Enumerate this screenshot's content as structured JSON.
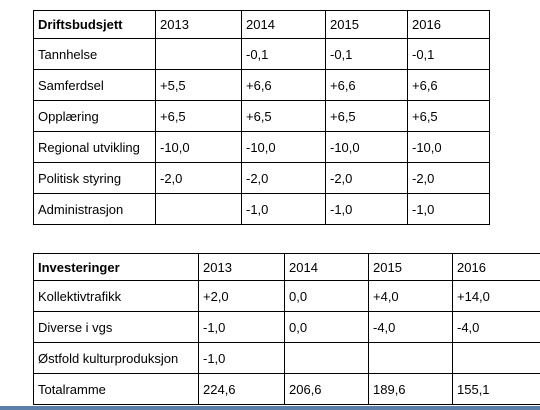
{
  "drift": {
    "headers": [
      "Driftsbudsjett",
      "2013",
      "2014",
      "2015",
      "2016"
    ],
    "rows": [
      [
        "Tannhelse",
        "",
        "-0,1",
        "-0,1",
        "-0,1"
      ],
      [
        "Samferdsel",
        "+5,5",
        "+6,6",
        "+6,6",
        "+6,6"
      ],
      [
        "Opplæring",
        "+6,5",
        "+6,5",
        "+6,5",
        "+6,5"
      ],
      [
        "Regional utvikling",
        "-10,0",
        "-10,0",
        "-10,0",
        "-10,0"
      ],
      [
        "Politisk styring",
        "-2,0",
        "-2,0",
        "-2,0",
        "-2,0"
      ],
      [
        "Administrasjon",
        "",
        "-1,0",
        "-1,0",
        "-1,0"
      ]
    ]
  },
  "invest": {
    "headers": [
      "Investeringer",
      "2013",
      "2014",
      "2015",
      "2016"
    ],
    "rows": [
      [
        "Kollektivtrafikk",
        "+2,0",
        "0,0",
        "+4,0",
        "+14,0"
      ],
      [
        "Diverse i vgs",
        "-1,0",
        "0,0",
        "-4,0",
        "-4,0"
      ],
      [
        "Østfold kulturproduksjon",
        "-1,0",
        "",
        "",
        ""
      ],
      [
        "Totalramme",
        "224,6",
        "206,6",
        "189,6",
        "155,1"
      ]
    ]
  },
  "colors": {
    "border": "#000000",
    "footer_line": "#5b7fa8"
  }
}
